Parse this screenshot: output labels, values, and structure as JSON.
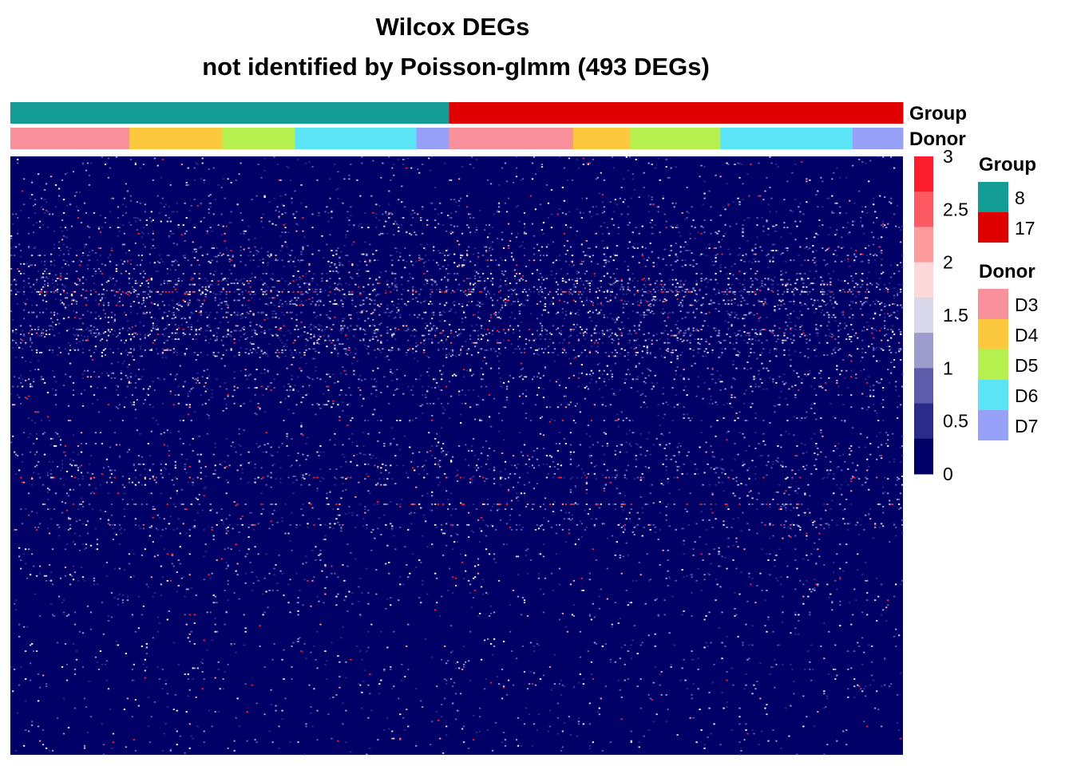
{
  "chart_data": {
    "type": "heatmap",
    "title": "Wilcox DEGs",
    "subtitle": "not identified by Poisson-glmm (493 DEGs)",
    "colors": {
      "heatmap_background": "#000066"
    },
    "annotation_tracks": [
      {
        "name": "Group",
        "segments": [
          {
            "label": "8",
            "fraction": 0.4915,
            "color": "#139C95"
          },
          {
            "label": "17",
            "fraction": 0.5085,
            "color": "#DF0000"
          }
        ]
      },
      {
        "name": "Donor",
        "segments": [
          {
            "label": "D3",
            "fraction": 0.1335,
            "color": "#F8919C"
          },
          {
            "label": "D4",
            "fraction": 0.104,
            "color": "#FCC93E"
          },
          {
            "label": "D5",
            "fraction": 0.0815,
            "color": "#B6F04E"
          },
          {
            "label": "D6",
            "fraction": 0.136,
            "color": "#5BE4F5"
          },
          {
            "label": "D7",
            "fraction": 0.0365,
            "color": "#97A1F8"
          },
          {
            "label": "D3",
            "fraction": 0.139,
            "color": "#F8919C"
          },
          {
            "label": "D4",
            "fraction": 0.0635,
            "color": "#FCC93E"
          },
          {
            "label": "D5",
            "fraction": 0.1015,
            "color": "#B6F04E"
          },
          {
            "label": "D6",
            "fraction": 0.148,
            "color": "#5BE4F5"
          },
          {
            "label": "D7",
            "fraction": 0.0565,
            "color": "#97A1F8"
          }
        ]
      }
    ],
    "color_scale": {
      "min": 0,
      "max": 3,
      "ticks": [
        "3",
        "2.5",
        "2",
        "1.5",
        "1",
        "0.5",
        "0"
      ],
      "bins_top_to_bottom": [
        "#FC1E2D",
        "#FD5A63",
        "#FD9B9D",
        "#FDD8D9",
        "#D8D8EA",
        "#9D9DCD",
        "#5D5DAC",
        "#2B2B8C",
        "#000066"
      ]
    },
    "legends": [
      {
        "title": "Group",
        "entries": [
          {
            "label": "8",
            "color": "#139C95"
          },
          {
            "label": "17",
            "color": "#DF0000"
          }
        ]
      },
      {
        "title": "Donor",
        "entries": [
          {
            "label": "D3",
            "color": "#F8919C"
          },
          {
            "label": "D4",
            "color": "#FCC93E"
          },
          {
            "label": "D5",
            "color": "#B6F04E"
          },
          {
            "label": "D6",
            "color": "#5BE4F5"
          },
          {
            "label": "D7",
            "color": "#97A1F8"
          }
        ]
      }
    ],
    "density_profile": {
      "description": "relative density of non-zero expression cells by gene row fraction (0=top, 1=bottom)",
      "row_fraction": [
        0.0,
        0.05,
        0.1,
        0.14,
        0.22,
        0.3,
        0.4,
        0.44,
        0.53,
        0.6,
        0.7,
        0.8,
        0.9,
        1.0
      ],
      "density": [
        0.05,
        0.06,
        0.1,
        0.16,
        0.28,
        0.24,
        0.12,
        0.1,
        0.13,
        0.09,
        0.07,
        0.06,
        0.04,
        0.03
      ]
    },
    "highlight_rows": [
      {
        "row_fraction": 0.225,
        "strength": 0.9
      },
      {
        "row_fraction": 0.24,
        "strength": 0.4
      },
      {
        "row_fraction": 0.295,
        "strength": 0.35
      },
      {
        "row_fraction": 0.31,
        "strength": 0.3
      },
      {
        "row_fraction": 0.44,
        "strength": 0.3
      },
      {
        "row_fraction": 0.535,
        "strength": 0.55
      },
      {
        "row_fraction": 0.58,
        "strength": 0.75
      },
      {
        "row_fraction": 0.615,
        "strength": 0.5
      }
    ]
  }
}
